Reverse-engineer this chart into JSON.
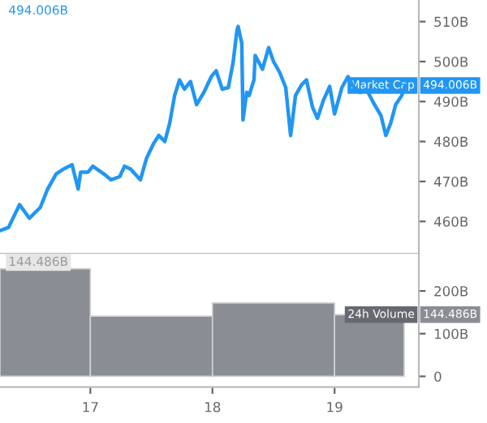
{
  "chart_data": [
    {
      "type": "line",
      "x": [
        16.26,
        16.33,
        16.42,
        16.5,
        16.59,
        16.65,
        16.72,
        16.78,
        16.85,
        16.9,
        16.92,
        16.98,
        17.02,
        17.11,
        17.17,
        17.24,
        17.28,
        17.33,
        17.41,
        17.46,
        17.52,
        17.56,
        17.61,
        17.65,
        17.69,
        17.73,
        17.77,
        17.82,
        17.87,
        17.93,
        17.99,
        18.03,
        18.08,
        18.13,
        18.17,
        18.2,
        18.21,
        18.24,
        18.25,
        18.28,
        18.3,
        18.34,
        18.35,
        18.41,
        18.46,
        18.5,
        18.55,
        18.6,
        18.64,
        18.68,
        18.73,
        18.77,
        18.82,
        18.86,
        18.91,
        18.96,
        19.0,
        19.06,
        19.11,
        19.16,
        19.21,
        19.26,
        19.32,
        19.38,
        19.42,
        19.46,
        19.5,
        19.55,
        19.58
      ],
      "series": [
        {
          "name": "Market Cap",
          "color": "#2196f3",
          "values": [
            457.7,
            458.5,
            464.2,
            460.8,
            463.5,
            468.1,
            471.9,
            473.1,
            474.2,
            468.1,
            472.3,
            472.3,
            473.8,
            471.9,
            470.4,
            471.2,
            473.8,
            473.1,
            470.4,
            475.8,
            479.6,
            481.5,
            480,
            484.6,
            491.5,
            495.4,
            493.1,
            495,
            489.2,
            492.3,
            496.2,
            497.7,
            493.1,
            493.5,
            500,
            507.7,
            508.8,
            504.6,
            485.4,
            492.3,
            491.5,
            495.4,
            501.5,
            498.1,
            503.5,
            500,
            497.3,
            493.5,
            481.5,
            491.5,
            494.2,
            495.4,
            488.5,
            485.8,
            490.4,
            493.8,
            486.9,
            493.5,
            496.2,
            493.5,
            492.3,
            493.1,
            489.6,
            486.5,
            481.5,
            484.6,
            489.2,
            491.5,
            494.006
          ]
        }
      ],
      "xlim": [
        16.26,
        19.69
      ],
      "ylim": [
        451.9,
        515.4
      ],
      "yticks": [
        {
          "value": 460,
          "label": "460B"
        },
        {
          "value": 470,
          "label": "470B"
        },
        {
          "value": 480,
          "label": "480B"
        },
        {
          "value": 490,
          "label": "490B"
        },
        {
          "value": 500,
          "label": "500B"
        },
        {
          "value": 510,
          "label": "510B"
        }
      ],
      "tick_labels": "y",
      "grid": false,
      "annotations": [
        "494.006B",
        "494.006B"
      ]
    },
    {
      "type": "histogram",
      "bins": [
        16.26,
        17,
        18,
        19,
        19.57
      ],
      "series": [
        {
          "name": "24h Volume",
          "color": "#8a8d93",
          "values": [
            252,
            141,
            172,
            144.486
          ]
        }
      ],
      "xlim": [
        16.26,
        19.69
      ],
      "ylim": [
        -25,
        287
      ],
      "xticks": [
        17,
        18,
        19
      ],
      "yticks": [
        0,
        {
          "value": 100,
          "label": "100B"
        },
        {
          "value": 200,
          "label": "200B"
        }
      ],
      "grid": false,
      "annotations": [
        "144.486B",
        "144.486B"
      ]
    }
  ]
}
